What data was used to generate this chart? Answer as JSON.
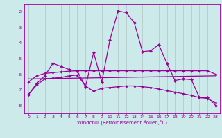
{
  "xlabel": "Windchill (Refroidissement éolien,°C)",
  "background_color": "#cceaea",
  "line_color": "#990099",
  "grid_color": "#aabbbb",
  "xlim": [
    -0.5,
    23.5
  ],
  "ylim": [
    -8.5,
    -1.5
  ],
  "yticks": [
    -8,
    -7,
    -6,
    -5,
    -4,
    -3,
    -2
  ],
  "xticks": [
    0,
    1,
    2,
    3,
    4,
    5,
    6,
    7,
    8,
    9,
    10,
    11,
    12,
    13,
    14,
    15,
    16,
    17,
    18,
    19,
    20,
    21,
    22,
    23
  ],
  "curve1_x": [
    0,
    1,
    2,
    3,
    4,
    5,
    6,
    7,
    8,
    9,
    10,
    11,
    12,
    13,
    14,
    15,
    16,
    17,
    18,
    19,
    20,
    21,
    22,
    23
  ],
  "curve1_y": [
    -7.3,
    -6.6,
    -6.1,
    -5.3,
    -5.5,
    -5.7,
    -5.8,
    -6.8,
    -4.6,
    -6.5,
    -3.8,
    -1.95,
    -2.05,
    -2.7,
    -4.55,
    -4.5,
    -4.1,
    -5.3,
    -6.4,
    -6.3,
    -6.35,
    -7.5,
    -7.5,
    -8.0
  ],
  "curve2_x": [
    0,
    1,
    2,
    3,
    4,
    5,
    6,
    7,
    8,
    9,
    10,
    11,
    12,
    13,
    14,
    15,
    16,
    17,
    18,
    19,
    20,
    21,
    22,
    23
  ],
  "curve2_y": [
    -6.5,
    -6.1,
    -5.95,
    -5.9,
    -5.85,
    -5.8,
    -5.78,
    -5.78,
    -5.78,
    -5.78,
    -5.78,
    -5.78,
    -5.78,
    -5.78,
    -5.78,
    -5.78,
    -5.78,
    -5.78,
    -5.78,
    -5.78,
    -5.78,
    -5.78,
    -5.78,
    -6.0
  ],
  "curve3_x": [
    0,
    23
  ],
  "curve3_y": [
    -6.3,
    -6.1
  ],
  "curve4_x": [
    0,
    1,
    2,
    3,
    4,
    5,
    6,
    7,
    8,
    9,
    10,
    11,
    12,
    13,
    14,
    15,
    16,
    17,
    18,
    19,
    20,
    21,
    22,
    23
  ],
  "curve4_y": [
    -7.3,
    -6.7,
    -6.3,
    -6.25,
    -6.2,
    -6.1,
    -6.05,
    -6.75,
    -7.1,
    -6.9,
    -6.85,
    -6.8,
    -6.75,
    -6.75,
    -6.8,
    -6.85,
    -6.95,
    -7.05,
    -7.15,
    -7.25,
    -7.35,
    -7.5,
    -7.55,
    -7.85
  ]
}
